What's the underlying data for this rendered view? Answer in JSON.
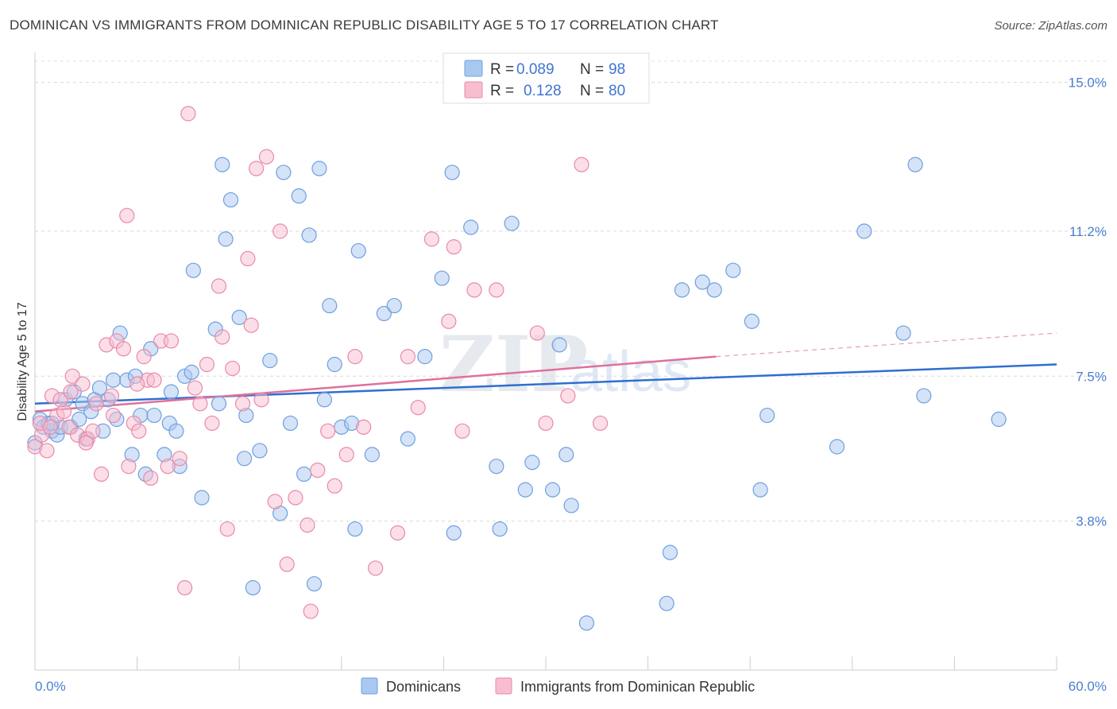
{
  "header": {
    "title": "DOMINICAN VS IMMIGRANTS FROM DOMINICAN REPUBLIC DISABILITY AGE 5 TO 17 CORRELATION CHART",
    "source": "Source: ZipAtlas.com"
  },
  "watermark": {
    "zip": "ZIP",
    "atlas": "atlas"
  },
  "legend_box": {
    "rows": [
      {
        "r_label": "R =",
        "r_value": "0.089",
        "n_label": "N =",
        "n_value": "98",
        "color": "#a9c8f0",
        "stroke": "#6f9fdf"
      },
      {
        "r_label": "R =",
        "r_value": "0.128",
        "n_label": "N =",
        "n_value": "80",
        "color": "#f7bed0",
        "stroke": "#e88aa8"
      }
    ]
  },
  "bottom_legend": {
    "items": [
      {
        "label": "Dominicans",
        "color": "#a9c8f0",
        "stroke": "#6f9fdf"
      },
      {
        "label": "Immigrants from Dominican Republic",
        "color": "#f7bed0",
        "stroke": "#e88aa8"
      }
    ]
  },
  "chart_data": {
    "type": "scatter",
    "title": "DOMINICAN VS IMMIGRANTS FROM DOMINICAN REPUBLIC DISABILITY AGE 5 TO 17 CORRELATION CHART",
    "xlabel": "",
    "ylabel": "Disability Age 5 to 17",
    "xlim": [
      0,
      60
    ],
    "ylim": [
      0,
      15.6
    ],
    "x_tick_labels": [
      "0.0%",
      "60.0%"
    ],
    "y_ticks": [
      3.8,
      7.5,
      11.2,
      15.0
    ],
    "y_tick_labels": [
      "3.8%",
      "7.5%",
      "11.2%",
      "15.0%"
    ],
    "grid": "horizontal dashed",
    "legend": "top-center",
    "colors": {
      "blue": "#4a7fd0",
      "blue_line": "#2f6fd0",
      "pink": "#e07099",
      "pink_line": "#e0709a"
    },
    "series": [
      {
        "name": "Dominicans",
        "color": "#a9c8f0",
        "stroke": "#6f9fdf",
        "trend": {
          "x": [
            0,
            60
          ],
          "y": [
            6.8,
            7.8
          ],
          "style": "solid"
        },
        "points": [
          [
            0.0,
            5.8
          ],
          [
            0.3,
            6.4
          ],
          [
            0.5,
            6.2
          ],
          [
            0.8,
            6.3
          ],
          [
            1.0,
            6.1
          ],
          [
            1.3,
            6.0
          ],
          [
            1.5,
            6.2
          ],
          [
            1.8,
            6.9
          ],
          [
            2.1,
            6.2
          ],
          [
            2.3,
            7.1
          ],
          [
            2.6,
            6.4
          ],
          [
            2.8,
            6.8
          ],
          [
            3.0,
            5.9
          ],
          [
            3.3,
            6.6
          ],
          [
            3.5,
            6.9
          ],
          [
            3.8,
            7.2
          ],
          [
            4.0,
            6.1
          ],
          [
            4.3,
            6.9
          ],
          [
            4.6,
            7.4
          ],
          [
            4.8,
            6.4
          ],
          [
            5.0,
            8.6
          ],
          [
            5.4,
            7.4
          ],
          [
            5.7,
            5.5
          ],
          [
            5.9,
            7.5
          ],
          [
            6.2,
            6.5
          ],
          [
            6.5,
            5.0
          ],
          [
            6.8,
            8.2
          ],
          [
            7.0,
            6.5
          ],
          [
            7.6,
            5.5
          ],
          [
            7.9,
            6.3
          ],
          [
            8.0,
            7.1
          ],
          [
            8.3,
            6.1
          ],
          [
            8.5,
            5.2
          ],
          [
            8.8,
            7.5
          ],
          [
            9.2,
            7.6
          ],
          [
            9.3,
            10.2
          ],
          [
            9.8,
            4.4
          ],
          [
            10.6,
            8.7
          ],
          [
            10.8,
            6.8
          ],
          [
            11.0,
            12.9
          ],
          [
            11.2,
            11.0
          ],
          [
            11.5,
            12.0
          ],
          [
            12.0,
            9.0
          ],
          [
            12.3,
            5.4
          ],
          [
            12.4,
            6.5
          ],
          [
            12.8,
            2.1
          ],
          [
            13.2,
            5.6
          ],
          [
            13.8,
            7.9
          ],
          [
            14.4,
            4.0
          ],
          [
            14.6,
            12.7
          ],
          [
            15.0,
            6.3
          ],
          [
            15.5,
            12.1
          ],
          [
            15.8,
            5.0
          ],
          [
            16.1,
            11.1
          ],
          [
            16.4,
            2.2
          ],
          [
            16.7,
            12.8
          ],
          [
            17.0,
            6.9
          ],
          [
            17.3,
            9.3
          ],
          [
            17.6,
            7.8
          ],
          [
            18.0,
            6.2
          ],
          [
            18.6,
            6.3
          ],
          [
            18.8,
            3.6
          ],
          [
            19.0,
            10.7
          ],
          [
            19.8,
            5.5
          ],
          [
            20.5,
            9.1
          ],
          [
            21.1,
            9.3
          ],
          [
            21.9,
            5.9
          ],
          [
            22.9,
            8.0
          ],
          [
            23.9,
            10.0
          ],
          [
            24.5,
            12.7
          ],
          [
            24.6,
            3.5
          ],
          [
            25.6,
            11.3
          ],
          [
            27.1,
            5.2
          ],
          [
            27.3,
            3.6
          ],
          [
            28.0,
            11.4
          ],
          [
            28.8,
            4.6
          ],
          [
            29.2,
            5.3
          ],
          [
            30.4,
            4.6
          ],
          [
            30.8,
            8.3
          ],
          [
            31.2,
            5.5
          ],
          [
            31.5,
            4.2
          ],
          [
            32.4,
            1.2
          ],
          [
            37.3,
            3.0
          ],
          [
            37.1,
            1.7
          ],
          [
            38.0,
            9.7
          ],
          [
            39.2,
            9.9
          ],
          [
            39.9,
            9.7
          ],
          [
            41.0,
            10.2
          ],
          [
            42.1,
            8.9
          ],
          [
            42.6,
            4.6
          ],
          [
            43.0,
            6.5
          ],
          [
            47.1,
            5.7
          ],
          [
            48.7,
            11.2
          ],
          [
            51.0,
            8.6
          ],
          [
            51.7,
            12.9
          ],
          [
            52.2,
            7.0
          ],
          [
            56.6,
            6.4
          ],
          [
            1.0,
            6.3
          ]
        ]
      },
      {
        "name": "Immigrants from Dominican Republic",
        "color": "#f7bed0",
        "stroke": "#e88aa8",
        "trend": {
          "x": [
            0,
            40
          ],
          "y": [
            6.6,
            8.0
          ],
          "style": "solid",
          "dashed_to": {
            "x": 60,
            "y": 8.6
          }
        },
        "points": [
          [
            0.0,
            5.7
          ],
          [
            0.4,
            6.0
          ],
          [
            0.7,
            5.6
          ],
          [
            1.0,
            7.0
          ],
          [
            1.3,
            6.5
          ],
          [
            1.7,
            6.6
          ],
          [
            2.0,
            6.2
          ],
          [
            2.2,
            7.5
          ],
          [
            2.5,
            6.0
          ],
          [
            2.8,
            7.3
          ],
          [
            3.1,
            5.9
          ],
          [
            3.4,
            6.1
          ],
          [
            3.6,
            6.8
          ],
          [
            3.9,
            5.0
          ],
          [
            4.2,
            8.3
          ],
          [
            4.5,
            7.0
          ],
          [
            4.8,
            8.4
          ],
          [
            5.2,
            8.2
          ],
          [
            5.4,
            11.6
          ],
          [
            5.5,
            5.2
          ],
          [
            5.8,
            6.3
          ],
          [
            6.1,
            6.1
          ],
          [
            6.4,
            8.0
          ],
          [
            6.6,
            7.4
          ],
          [
            6.8,
            4.9
          ],
          [
            7.0,
            7.4
          ],
          [
            7.4,
            8.4
          ],
          [
            8.0,
            8.4
          ],
          [
            8.5,
            5.4
          ],
          [
            8.8,
            2.1
          ],
          [
            9.0,
            14.2
          ],
          [
            9.7,
            6.8
          ],
          [
            10.1,
            7.8
          ],
          [
            10.4,
            6.3
          ],
          [
            10.8,
            9.8
          ],
          [
            11.0,
            8.5
          ],
          [
            11.3,
            3.6
          ],
          [
            11.6,
            7.7
          ],
          [
            12.2,
            6.8
          ],
          [
            12.5,
            10.5
          ],
          [
            12.7,
            8.8
          ],
          [
            13.0,
            12.8
          ],
          [
            13.3,
            6.9
          ],
          [
            13.6,
            13.1
          ],
          [
            14.1,
            4.3
          ],
          [
            14.4,
            11.2
          ],
          [
            14.8,
            2.7
          ],
          [
            15.3,
            4.4
          ],
          [
            16.0,
            3.7
          ],
          [
            16.2,
            1.5
          ],
          [
            16.6,
            5.1
          ],
          [
            17.2,
            6.1
          ],
          [
            17.6,
            4.7
          ],
          [
            18.3,
            5.5
          ],
          [
            18.8,
            8.0
          ],
          [
            19.3,
            6.2
          ],
          [
            20.0,
            2.6
          ],
          [
            21.3,
            3.5
          ],
          [
            21.9,
            8.0
          ],
          [
            22.5,
            6.7
          ],
          [
            23.3,
            11.0
          ],
          [
            24.3,
            8.9
          ],
          [
            24.6,
            10.8
          ],
          [
            25.1,
            6.1
          ],
          [
            25.8,
            9.7
          ],
          [
            27.1,
            9.7
          ],
          [
            29.5,
            8.6
          ],
          [
            30.0,
            6.3
          ],
          [
            31.3,
            7.0
          ],
          [
            32.1,
            12.9
          ],
          [
            33.2,
            6.3
          ],
          [
            0.3,
            6.3
          ],
          [
            0.9,
            6.2
          ],
          [
            1.5,
            6.9
          ],
          [
            2.1,
            7.1
          ],
          [
            3.0,
            5.8
          ],
          [
            4.6,
            6.5
          ],
          [
            6.0,
            7.3
          ],
          [
            7.8,
            5.2
          ],
          [
            9.4,
            7.2
          ]
        ]
      }
    ]
  }
}
